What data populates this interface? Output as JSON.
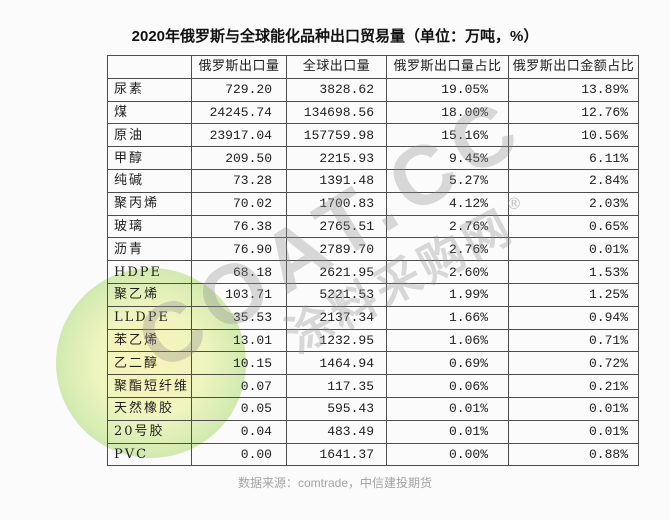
{
  "chart_data": {
    "type": "table",
    "title": "2020年俄罗斯与全球能化品种出口贸易量（单位：万吨，%）",
    "columns": [
      "",
      "俄罗斯出口量",
      "全球出口量",
      "俄罗斯出口量占比",
      "俄罗斯出口金额占比"
    ],
    "rows": [
      [
        "尿素",
        "729.20",
        "3828.62",
        "19.05%",
        "13.89%"
      ],
      [
        "煤",
        "24245.74",
        "134698.56",
        "18.00%",
        "12.76%"
      ],
      [
        "原油",
        "23917.04",
        "157759.98",
        "15.16%",
        "10.56%"
      ],
      [
        "甲醇",
        "209.50",
        "2215.93",
        "9.45%",
        "6.11%"
      ],
      [
        "纯碱",
        "73.28",
        "1391.48",
        "5.27%",
        "2.84%"
      ],
      [
        "聚丙烯",
        "70.02",
        "1700.83",
        "4.12%",
        "2.03%"
      ],
      [
        "玻璃",
        "76.38",
        "2765.51",
        "2.76%",
        "0.65%"
      ],
      [
        "沥青",
        "76.90",
        "2789.70",
        "2.76%",
        "0.01%"
      ],
      [
        "HDPE",
        "68.18",
        "2621.95",
        "2.60%",
        "1.53%"
      ],
      [
        "聚乙烯",
        "103.71",
        "5221.53",
        "1.99%",
        "1.25%"
      ],
      [
        "LLDPE",
        "35.53",
        "2137.34",
        "1.66%",
        "0.94%"
      ],
      [
        "苯乙烯",
        "13.01",
        "1232.95",
        "1.06%",
        "0.71%"
      ],
      [
        "乙二醇",
        "10.15",
        "1464.94",
        "0.69%",
        "0.72%"
      ],
      [
        "聚酯短纤维",
        "0.07",
        "117.35",
        "0.06%",
        "0.21%"
      ],
      [
        "天然橡胶",
        "0.05",
        "595.43",
        "0.01%",
        "0.01%"
      ],
      [
        "20号胶",
        "0.04",
        "483.49",
        "0.01%",
        "0.01%"
      ],
      [
        "PVC",
        "0.00",
        "1641.37",
        "0.00%",
        "0.88%"
      ]
    ],
    "source": "数据来源：comtrade，中信建投期货"
  },
  "watermark": {
    "brand": "COAT.CC",
    "mark": "®",
    "name": "涂料采购网"
  },
  "colors": {
    "page_bg": "#fbfbfb",
    "grid_line": "#4d4d4d",
    "cell_text": "#1e1e1e",
    "title_text": "#111111",
    "source_text": "#a3a3a3",
    "wm_text": "#8f8f8f",
    "wm_circle_inner": "#f4ee82",
    "wm_circle_outer": "#a3d86e"
  }
}
